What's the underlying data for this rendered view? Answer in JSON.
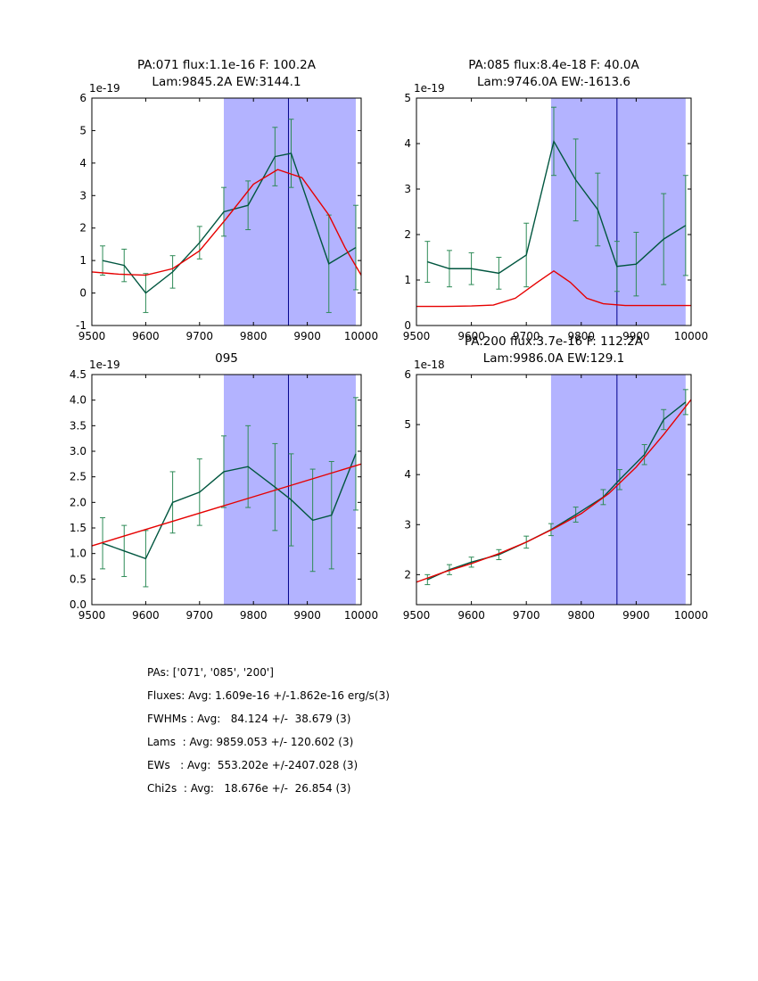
{
  "figure": {
    "background": "#ffffff"
  },
  "colors": {
    "data_line": "#00563f",
    "error_bar": "#2e8b57",
    "fit_line": "#e60000",
    "band_fill": "#b3b3ff",
    "vline": "#00008b",
    "axis": "#000000"
  },
  "chart_data": [
    {
      "type": "line",
      "title_lines": [
        "PA:071 flux:1.1e-16 F: 100.2A",
        "Lam:9845.2A EW:3144.1"
      ],
      "offset_label": "1e-19",
      "xlabel": "",
      "ylabel": "",
      "xlim": [
        9500,
        10000
      ],
      "ylim": [
        -1,
        6
      ],
      "xticks": [
        9500,
        9600,
        9700,
        9800,
        9900,
        10000
      ],
      "yticks": [
        -1,
        0,
        1,
        2,
        3,
        4,
        5,
        6
      ],
      "band_x": [
        9745,
        9990
      ],
      "vline_x": 9865,
      "legend": "off",
      "grid": "off",
      "series": [
        {
          "name": "data",
          "x": [
            9520,
            9560,
            9600,
            9650,
            9700,
            9745,
            9790,
            9840,
            9870,
            9940,
            9990
          ],
          "y": [
            1.0,
            0.85,
            0.0,
            0.65,
            1.55,
            2.5,
            2.7,
            4.2,
            4.3,
            0.9,
            1.4
          ],
          "yerr": [
            0.45,
            0.5,
            0.6,
            0.5,
            0.5,
            0.75,
            0.75,
            0.9,
            1.05,
            1.5,
            1.3
          ]
        },
        {
          "name": "fit",
          "x": [
            9500,
            9550,
            9600,
            9650,
            9700,
            9750,
            9800,
            9845,
            9890,
            9940,
            9970,
            10000
          ],
          "y": [
            0.65,
            0.58,
            0.55,
            0.75,
            1.3,
            2.3,
            3.35,
            3.8,
            3.55,
            2.4,
            1.4,
            0.55
          ]
        }
      ]
    },
    {
      "type": "line",
      "title_lines": [
        "PA:085 flux:8.4e-18 F: 40.0A",
        "Lam:9746.0A EW:-1613.6"
      ],
      "offset_label": "1e-19",
      "xlabel": "",
      "ylabel": "",
      "xlim": [
        9500,
        10000
      ],
      "ylim": [
        0,
        5
      ],
      "xticks": [
        9500,
        9600,
        9700,
        9800,
        9900,
        10000
      ],
      "yticks": [
        0,
        1,
        2,
        3,
        4,
        5
      ],
      "band_x": [
        9745,
        9990
      ],
      "vline_x": 9865,
      "legend": "off",
      "grid": "off",
      "series": [
        {
          "name": "data",
          "x": [
            9520,
            9560,
            9600,
            9650,
            9700,
            9750,
            9790,
            9830,
            9865,
            9900,
            9950,
            9990
          ],
          "y": [
            1.4,
            1.25,
            1.25,
            1.15,
            1.55,
            4.05,
            3.2,
            2.55,
            1.3,
            1.35,
            1.9,
            2.2
          ],
          "yerr": [
            0.45,
            0.4,
            0.35,
            0.35,
            0.7,
            0.75,
            0.9,
            0.8,
            0.55,
            0.7,
            1.0,
            1.1
          ]
        },
        {
          "name": "fit",
          "x": [
            9500,
            9550,
            9600,
            9640,
            9680,
            9720,
            9750,
            9780,
            9810,
            9840,
            9880,
            9950,
            10000
          ],
          "y": [
            0.42,
            0.42,
            0.43,
            0.45,
            0.6,
            0.95,
            1.2,
            0.95,
            0.6,
            0.48,
            0.44,
            0.44,
            0.44
          ]
        }
      ]
    },
    {
      "type": "line",
      "title_lines": [
        "095"
      ],
      "offset_label": "1e-19",
      "xlabel": "",
      "ylabel": "",
      "xlim": [
        9500,
        10000
      ],
      "ylim": [
        0,
        4.5
      ],
      "xticks": [
        9500,
        9600,
        9700,
        9800,
        9900,
        10000
      ],
      "yticks": [
        0,
        0.5,
        1.0,
        1.5,
        2.0,
        2.5,
        3.0,
        3.5,
        4.0,
        4.5
      ],
      "ytick_labels": [
        "0.0",
        "0.5",
        "1.0",
        "1.5",
        "2.0",
        "2.5",
        "3.0",
        "3.5",
        "4.0",
        "4.5"
      ],
      "band_x": [
        9745,
        9990
      ],
      "vline_x": 9865,
      "legend": "off",
      "grid": "off",
      "series": [
        {
          "name": "data",
          "x": [
            9520,
            9560,
            9600,
            9650,
            9700,
            9745,
            9790,
            9840,
            9870,
            9910,
            9945,
            9990
          ],
          "y": [
            1.2,
            1.05,
            0.9,
            2.0,
            2.2,
            2.6,
            2.7,
            2.3,
            2.05,
            1.65,
            1.75,
            2.95
          ],
          "yerr": [
            0.5,
            0.5,
            0.55,
            0.6,
            0.65,
            0.7,
            0.8,
            0.85,
            0.9,
            1.0,
            1.05,
            1.1
          ]
        },
        {
          "name": "fit",
          "x": [
            9500,
            10000
          ],
          "y": [
            1.15,
            2.75
          ]
        }
      ]
    },
    {
      "type": "line",
      "title_lines": [
        "PA:200 flux:3.7e-16 F: 112.2A",
        "Lam:9986.0A EW:129.1"
      ],
      "offset_label": "1e-18",
      "xlabel": "",
      "ylabel": "",
      "xlim": [
        9500,
        10000
      ],
      "ylim": [
        1.4,
        6
      ],
      "xticks": [
        9500,
        9600,
        9700,
        9800,
        9900,
        10000
      ],
      "yticks": [
        2,
        3,
        4,
        5,
        6
      ],
      "band_x": [
        9745,
        9990
      ],
      "vline_x": 9865,
      "legend": "off",
      "grid": "off",
      "series": [
        {
          "name": "data",
          "x": [
            9520,
            9560,
            9600,
            9650,
            9700,
            9745,
            9790,
            9840,
            9870,
            9915,
            9950,
            9990
          ],
          "y": [
            1.9,
            2.1,
            2.25,
            2.4,
            2.65,
            2.9,
            3.2,
            3.55,
            3.9,
            4.4,
            5.1,
            5.45
          ],
          "yerr": [
            0.1,
            0.1,
            0.1,
            0.1,
            0.12,
            0.12,
            0.15,
            0.15,
            0.2,
            0.2,
            0.2,
            0.25
          ]
        },
        {
          "name": "fit",
          "x": [
            9500,
            9550,
            9600,
            9650,
            9700,
            9750,
            9800,
            9850,
            9900,
            9950,
            10000
          ],
          "y": [
            1.85,
            2.05,
            2.22,
            2.42,
            2.65,
            2.92,
            3.22,
            3.62,
            4.15,
            4.8,
            5.5
          ]
        }
      ]
    }
  ],
  "summary": {
    "lines": [
      "PAs: ['071', '085', '200']",
      "Fluxes: Avg: 1.609e-16 +/-1.862e-16 erg/s(3)",
      "FWHMs : Avg:   84.124 +/-  38.679 (3)",
      "Lams  : Avg: 9859.053 +/- 120.602 (3)",
      "EWs   : Avg:  553.202e +/-2407.028 (3)",
      "Chi2s  : Avg:   18.676e +/-  26.854 (3)"
    ]
  }
}
